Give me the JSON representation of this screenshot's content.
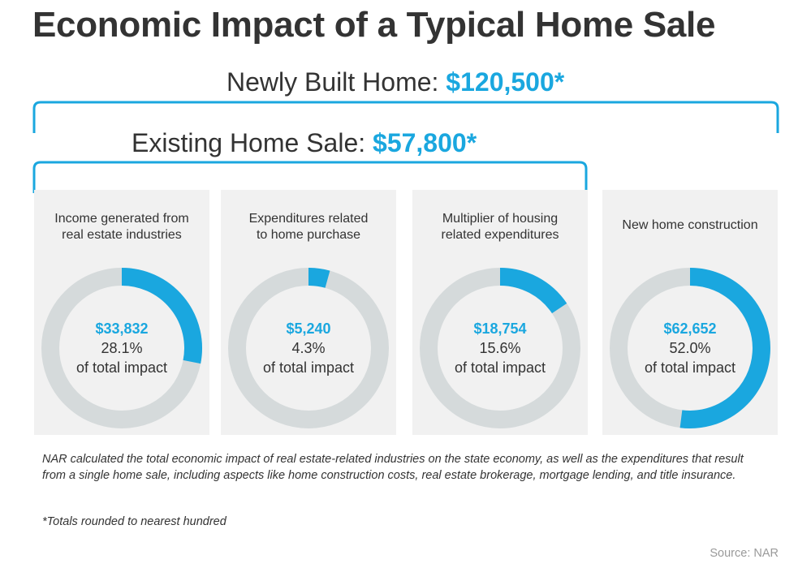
{
  "title": "Economic Impact of a Typical Home Sale",
  "totals": {
    "newly_built_label": "Newly Built Home:",
    "newly_built_value": "$120,500*",
    "existing_label": "Existing Home Sale:",
    "existing_value": "$57,800*"
  },
  "colors": {
    "accent": "#1aa7df",
    "ring_track": "#d5dadb",
    "card_bg": "#f1f1f1",
    "text": "#333333"
  },
  "chart_data": {
    "type": "pie",
    "title": "Economic Impact of a Typical Home Sale",
    "series": [
      {
        "name": "Income generated from\nreal estate industries",
        "amount": "$33,832",
        "value": 28.1,
        "percent_label": "28.1%",
        "sublabel": "of total impact"
      },
      {
        "name": "Expenditures related\nto home purchase",
        "amount": "$5,240",
        "value": 4.3,
        "percent_label": "4.3%",
        "sublabel": "of total impact"
      },
      {
        "name": "Multiplier of housing\nrelated expenditures",
        "amount": "$18,754",
        "value": 15.6,
        "percent_label": "15.6%",
        "sublabel": "of total impact"
      },
      {
        "name": "New home construction",
        "amount": "$62,652",
        "value": 52.0,
        "percent_label": "52.0%",
        "sublabel": "of total impact"
      }
    ]
  },
  "note": "NAR calculated the total economic impact of real estate-related industries on the state economy, as well as the expenditures that result from a single home sale, including aspects like home construction costs, real estate brokerage, mortgage lending, and title insurance.",
  "footnote": "*Totals rounded to nearest hundred",
  "source": "Source: NAR"
}
